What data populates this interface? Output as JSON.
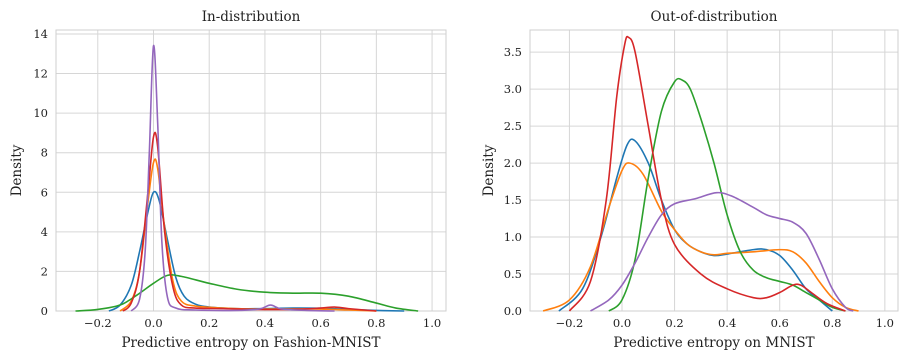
{
  "chart_data": [
    {
      "type": "line",
      "title": "In-distribution",
      "xlabel": "Predictive entropy on Fashion-MNIST",
      "ylabel": "Density",
      "xlim": [
        -0.35,
        1.05
      ],
      "ylim": [
        0,
        14.2
      ],
      "xticks": [
        -0.2,
        0.0,
        0.2,
        0.4,
        0.6,
        0.8,
        1.0
      ],
      "xtick_labels": [
        "−0.2",
        "0.0",
        "0.2",
        "0.4",
        "0.6",
        "0.8",
        "1.0"
      ],
      "yticks": [
        0,
        2,
        4,
        6,
        8,
        10,
        12,
        14
      ],
      "ytick_labels": [
        "0",
        "2",
        "4",
        "6",
        "8",
        "10",
        "12",
        "14"
      ],
      "grid": true,
      "series": [
        {
          "color": "#1f77b4",
          "points": [
            [
              -0.16,
              0
            ],
            [
              -0.12,
              0.3
            ],
            [
              -0.08,
              1.3
            ],
            [
              -0.05,
              3.0
            ],
            [
              -0.02,
              5.0
            ],
            [
              0.0,
              6.0
            ],
            [
              0.02,
              5.6
            ],
            [
              0.05,
              3.6
            ],
            [
              0.08,
              1.7
            ],
            [
              0.11,
              0.75
            ],
            [
              0.15,
              0.35
            ],
            [
              0.2,
              0.2
            ],
            [
              0.3,
              0.12
            ],
            [
              0.4,
              0.12
            ],
            [
              0.5,
              0.15
            ],
            [
              0.6,
              0.14
            ],
            [
              0.7,
              0.08
            ],
            [
              0.8,
              0.03
            ],
            [
              0.9,
              0
            ]
          ]
        },
        {
          "color": "#ff7f0e",
          "points": [
            [
              -0.12,
              0
            ],
            [
              -0.08,
              0.5
            ],
            [
              -0.05,
              2.0
            ],
            [
              -0.02,
              5.5
            ],
            [
              0.0,
              7.5
            ],
            [
              0.015,
              7.2
            ],
            [
              0.04,
              4.2
            ],
            [
              0.07,
              1.5
            ],
            [
              0.1,
              0.5
            ],
            [
              0.15,
              0.25
            ],
            [
              0.25,
              0.15
            ],
            [
              0.35,
              0.1
            ],
            [
              0.5,
              0.1
            ],
            [
              0.6,
              0.1
            ],
            [
              0.7,
              0.05
            ],
            [
              0.8,
              0
            ]
          ]
        },
        {
          "color": "#2ca02c",
          "points": [
            [
              -0.28,
              0
            ],
            [
              -0.2,
              0.08
            ],
            [
              -0.12,
              0.3
            ],
            [
              -0.06,
              0.8
            ],
            [
              0.0,
              1.4
            ],
            [
              0.05,
              1.8
            ],
            [
              0.1,
              1.75
            ],
            [
              0.2,
              1.4
            ],
            [
              0.3,
              1.1
            ],
            [
              0.4,
              0.95
            ],
            [
              0.5,
              0.9
            ],
            [
              0.6,
              0.9
            ],
            [
              0.7,
              0.75
            ],
            [
              0.8,
              0.4
            ],
            [
              0.87,
              0.15
            ],
            [
              0.95,
              0
            ]
          ]
        },
        {
          "color": "#d62728",
          "points": [
            [
              -0.11,
              0
            ],
            [
              -0.08,
              0.4
            ],
            [
              -0.05,
              2.0
            ],
            [
              -0.02,
              6.0
            ],
            [
              0.0,
              8.8
            ],
            [
              0.015,
              8.3
            ],
            [
              0.04,
              4.0
            ],
            [
              0.07,
              1.2
            ],
            [
              0.1,
              0.3
            ],
            [
              0.15,
              0.15
            ],
            [
              0.25,
              0.12
            ],
            [
              0.35,
              0.08
            ],
            [
              0.5,
              0.08
            ],
            [
              0.6,
              0.15
            ],
            [
              0.65,
              0.2
            ],
            [
              0.7,
              0.12
            ],
            [
              0.8,
              0
            ]
          ]
        },
        {
          "color": "#9467bd",
          "points": [
            [
              -0.08,
              0
            ],
            [
              -0.05,
              0.6
            ],
            [
              -0.03,
              3.0
            ],
            [
              -0.015,
              8.0
            ],
            [
              0.0,
              13.4
            ],
            [
              0.015,
              9.5
            ],
            [
              0.03,
              3.5
            ],
            [
              0.05,
              0.7
            ],
            [
              0.08,
              0.15
            ],
            [
              0.15,
              0.05
            ],
            [
              0.3,
              0.03
            ],
            [
              0.38,
              0.1
            ],
            [
              0.42,
              0.3
            ],
            [
              0.46,
              0.1
            ],
            [
              0.55,
              0.03
            ],
            [
              0.65,
              0
            ]
          ]
        }
      ]
    },
    {
      "type": "line",
      "title": "Out-of-distribution",
      "xlabel": "Predictive entropy on MNIST",
      "ylabel": "Density",
      "xlim": [
        -0.35,
        1.05
      ],
      "ylim": [
        0,
        3.8
      ],
      "xticks": [
        -0.2,
        0.0,
        0.2,
        0.4,
        0.6,
        0.8,
        1.0
      ],
      "xtick_labels": [
        "−0.2",
        "0.0",
        "0.2",
        "0.4",
        "0.6",
        "0.8",
        "1.0"
      ],
      "yticks": [
        0.0,
        0.5,
        1.0,
        1.5,
        2.0,
        2.5,
        3.0,
        3.5
      ],
      "ytick_labels": [
        "0.0",
        "0.5",
        "1.0",
        "1.5",
        "2.0",
        "2.5",
        "3.0",
        "3.5"
      ],
      "grid": true,
      "series": [
        {
          "color": "#1f77b4",
          "points": [
            [
              -0.24,
              0
            ],
            [
              -0.15,
              0.3
            ],
            [
              -0.08,
              1.0
            ],
            [
              -0.02,
              1.8
            ],
            [
              0.02,
              2.25
            ],
            [
              0.05,
              2.3
            ],
            [
              0.1,
              2.0
            ],
            [
              0.15,
              1.5
            ],
            [
              0.2,
              1.1
            ],
            [
              0.25,
              0.9
            ],
            [
              0.3,
              0.8
            ],
            [
              0.35,
              0.75
            ],
            [
              0.4,
              0.77
            ],
            [
              0.5,
              0.83
            ],
            [
              0.55,
              0.83
            ],
            [
              0.6,
              0.75
            ],
            [
              0.65,
              0.55
            ],
            [
              0.7,
              0.3
            ],
            [
              0.75,
              0.15
            ],
            [
              0.8,
              0
            ]
          ]
        },
        {
          "color": "#ff7f0e",
          "points": [
            [
              -0.3,
              0
            ],
            [
              -0.2,
              0.15
            ],
            [
              -0.12,
              0.6
            ],
            [
              -0.05,
              1.4
            ],
            [
              0.0,
              1.9
            ],
            [
              0.03,
              2.0
            ],
            [
              0.08,
              1.85
            ],
            [
              0.15,
              1.35
            ],
            [
              0.2,
              1.1
            ],
            [
              0.25,
              0.9
            ],
            [
              0.3,
              0.8
            ],
            [
              0.35,
              0.76
            ],
            [
              0.4,
              0.78
            ],
            [
              0.5,
              0.8
            ],
            [
              0.6,
              0.83
            ],
            [
              0.65,
              0.8
            ],
            [
              0.7,
              0.65
            ],
            [
              0.75,
              0.4
            ],
            [
              0.8,
              0.18
            ],
            [
              0.85,
              0.05
            ],
            [
              0.9,
              0
            ]
          ]
        },
        {
          "color": "#2ca02c",
          "points": [
            [
              -0.05,
              0
            ],
            [
              0.0,
              0.15
            ],
            [
              0.05,
              0.7
            ],
            [
              0.1,
              1.8
            ],
            [
              0.15,
              2.7
            ],
            [
              0.2,
              3.1
            ],
            [
              0.23,
              3.12
            ],
            [
              0.26,
              3.0
            ],
            [
              0.3,
              2.6
            ],
            [
              0.35,
              2.0
            ],
            [
              0.4,
              1.3
            ],
            [
              0.45,
              0.8
            ],
            [
              0.5,
              0.55
            ],
            [
              0.55,
              0.45
            ],
            [
              0.6,
              0.4
            ],
            [
              0.65,
              0.35
            ],
            [
              0.7,
              0.25
            ],
            [
              0.75,
              0.15
            ],
            [
              0.8,
              0.05
            ],
            [
              0.85,
              0
            ]
          ]
        },
        {
          "color": "#d62728",
          "points": [
            [
              -0.2,
              0
            ],
            [
              -0.12,
              0.4
            ],
            [
              -0.06,
              1.5
            ],
            [
              -0.02,
              2.9
            ],
            [
              0.01,
              3.6
            ],
            [
              0.025,
              3.7
            ],
            [
              0.05,
              3.5
            ],
            [
              0.1,
              2.5
            ],
            [
              0.15,
              1.5
            ],
            [
              0.2,
              0.9
            ],
            [
              0.3,
              0.5
            ],
            [
              0.4,
              0.3
            ],
            [
              0.5,
              0.18
            ],
            [
              0.55,
              0.18
            ],
            [
              0.6,
              0.25
            ],
            [
              0.65,
              0.35
            ],
            [
              0.68,
              0.35
            ],
            [
              0.72,
              0.25
            ],
            [
              0.78,
              0.1
            ],
            [
              0.85,
              0
            ]
          ]
        },
        {
          "color": "#9467bd",
          "points": [
            [
              -0.12,
              0
            ],
            [
              -0.05,
              0.15
            ],
            [
              0.0,
              0.35
            ],
            [
              0.05,
              0.65
            ],
            [
              0.1,
              1.0
            ],
            [
              0.15,
              1.3
            ],
            [
              0.2,
              1.45
            ],
            [
              0.28,
              1.52
            ],
            [
              0.36,
              1.6
            ],
            [
              0.42,
              1.55
            ],
            [
              0.5,
              1.4
            ],
            [
              0.55,
              1.3
            ],
            [
              0.6,
              1.25
            ],
            [
              0.65,
              1.2
            ],
            [
              0.7,
              1.05
            ],
            [
              0.75,
              0.7
            ],
            [
              0.8,
              0.3
            ],
            [
              0.85,
              0.05
            ],
            [
              0.88,
              0
            ]
          ]
        }
      ]
    }
  ]
}
